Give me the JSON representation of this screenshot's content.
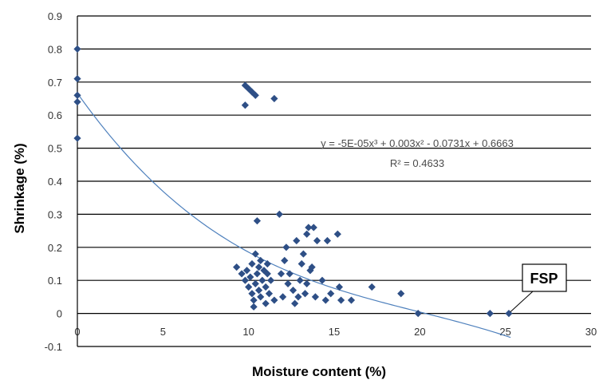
{
  "chart_data": {
    "type": "scatter",
    "xlabel": "Moisture content (%)",
    "ylabel": "Shrinkage (%)",
    "xlim": [
      0,
      30
    ],
    "ylim": [
      -0.1,
      0.9
    ],
    "x_ticks": [
      0,
      5,
      10,
      15,
      20,
      25,
      30
    ],
    "y_ticks": [
      -0.1,
      0,
      0.1,
      0.2,
      0.3,
      0.4,
      0.5,
      0.6,
      0.7,
      0.8,
      0.9
    ],
    "grid": "horizontal",
    "marker_color": "#2e4f86",
    "trendline_color": "#4f81bd",
    "points": [
      [
        0,
        0.8
      ],
      [
        0,
        0.71
      ],
      [
        0,
        0.66
      ],
      [
        0,
        0.64
      ],
      [
        0,
        0.53
      ],
      [
        9.8,
        0.69
      ],
      [
        10.0,
        0.68
      ],
      [
        10.2,
        0.67
      ],
      [
        10.4,
        0.66
      ],
      [
        9.8,
        0.63
      ],
      [
        11.5,
        0.65
      ],
      [
        10.5,
        0.28
      ],
      [
        11.8,
        0.3
      ],
      [
        9.3,
        0.14
      ],
      [
        9.6,
        0.12
      ],
      [
        9.8,
        0.1
      ],
      [
        9.9,
        0.13
      ],
      [
        10.0,
        0.08
      ],
      [
        10.1,
        0.11
      ],
      [
        10.2,
        0.06
      ],
      [
        10.2,
        0.15
      ],
      [
        10.3,
        0.02
      ],
      [
        10.3,
        0.04
      ],
      [
        10.4,
        0.09
      ],
      [
        10.4,
        0.18
      ],
      [
        10.5,
        0.12
      ],
      [
        10.6,
        0.07
      ],
      [
        10.6,
        0.14
      ],
      [
        10.7,
        0.05
      ],
      [
        10.7,
        0.16
      ],
      [
        10.8,
        0.1
      ],
      [
        10.9,
        0.13
      ],
      [
        11.0,
        0.08
      ],
      [
        11.0,
        0.03
      ],
      [
        11.1,
        0.12
      ],
      [
        11.1,
        0.15
      ],
      [
        11.2,
        0.06
      ],
      [
        11.3,
        0.1
      ],
      [
        11.5,
        0.04
      ],
      [
        11.9,
        0.12
      ],
      [
        12.0,
        0.05
      ],
      [
        12.1,
        0.16
      ],
      [
        12.2,
        0.2
      ],
      [
        12.3,
        0.09
      ],
      [
        12.4,
        0.12
      ],
      [
        12.6,
        0.07
      ],
      [
        12.7,
        0.03
      ],
      [
        12.8,
        0.22
      ],
      [
        12.9,
        0.05
      ],
      [
        13.0,
        0.1
      ],
      [
        13.1,
        0.15
      ],
      [
        13.2,
        0.18
      ],
      [
        13.3,
        0.06
      ],
      [
        13.4,
        0.24
      ],
      [
        13.4,
        0.09
      ],
      [
        13.5,
        0.26
      ],
      [
        13.6,
        0.13
      ],
      [
        13.7,
        0.14
      ],
      [
        13.8,
        0.26
      ],
      [
        13.9,
        0.05
      ],
      [
        14.0,
        0.22
      ],
      [
        14.3,
        0.1
      ],
      [
        14.5,
        0.04
      ],
      [
        14.6,
        0.22
      ],
      [
        14.8,
        0.06
      ],
      [
        15.2,
        0.24
      ],
      [
        15.3,
        0.08
      ],
      [
        15.4,
        0.04
      ],
      [
        16.0,
        0.04
      ],
      [
        17.2,
        0.08
      ],
      [
        18.9,
        0.06
      ],
      [
        19.9,
        0.0
      ],
      [
        24.1,
        0.0
      ],
      [
        25.2,
        0.0
      ]
    ],
    "trendline": {
      "type": "polynomial",
      "coefficients": [
        -5e-05,
        0.003,
        -0.0731,
        0.6663
      ],
      "x_range": [
        0,
        25.3
      ]
    },
    "equation_text": "y = -5E-05x³ + 0.003x² - 0.0731x + 0.6663",
    "r2_text": "R² = 0.4633",
    "annotation": {
      "text": "FSP",
      "x": 25.2,
      "y": 0.0
    }
  }
}
